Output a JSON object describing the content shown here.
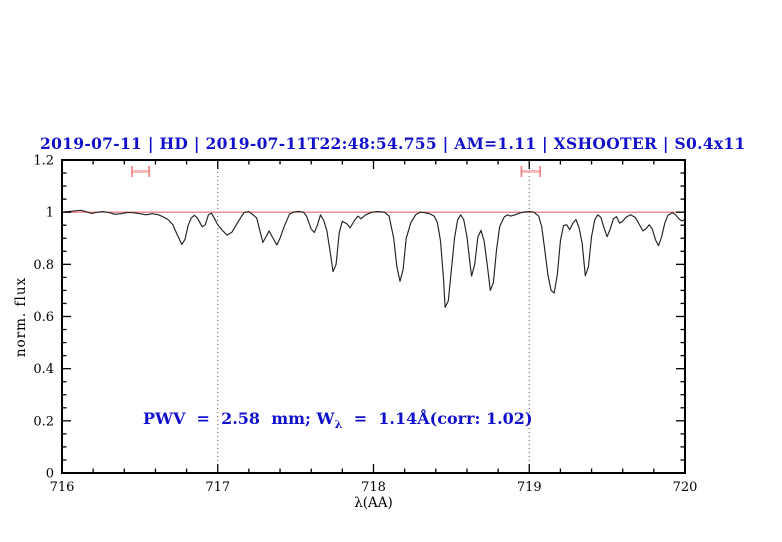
{
  "chart_data": {
    "type": "line",
    "title": "2019-07-11 | HD | 2019-07-11T22:48:54.755 | AM=1.11 | XSHOOTER | S0.4x11",
    "accent_color": "#1111cc",
    "xlabel": "λ(AA)",
    "ylabel": "norm. flux",
    "xlim": [
      716,
      720
    ],
    "ylim": [
      0,
      1.2
    ],
    "x_major_ticks": [
      716,
      717,
      718,
      719,
      720
    ],
    "x_tick_labels": [
      "716",
      "717",
      "718",
      "719",
      "720"
    ],
    "x_minor_step": 0.2,
    "y_major_ticks": [
      0,
      0.2,
      0.4,
      0.6,
      0.8,
      1.0,
      1.2
    ],
    "y_tick_labels": [
      "0",
      "0.2",
      "0.4",
      "0.6",
      "0.8",
      "1",
      "1.2"
    ],
    "y_minor_step": 0.05,
    "grid": "off",
    "legend": "none",
    "dotted_vlines": [
      717,
      719
    ],
    "dotted_vline_color": "#555555",
    "reference_hline": {
      "y": 1.0,
      "color": "#ee6b6b"
    },
    "range_markers": [
      {
        "x_min": 716.45,
        "x_max": 716.56,
        "y": 1.156
      },
      {
        "x_min": 718.95,
        "x_max": 719.07,
        "y": 1.156
      }
    ],
    "marker_bar_color": "#f7b0b0",
    "marker_cap_color": "#ec8282",
    "line_color": "#222222",
    "frame_color": "#000000",
    "annotation": {
      "pre": "PWV  =  2.58  mm; W",
      "sub": "λ",
      "post": "  =  1.14Å(corr: 1.02)",
      "x": 716.52,
      "y": 0.205
    },
    "series": [
      {
        "name": "normalized telluric spectrum",
        "points": [
          [
            716.0,
            1.0
          ],
          [
            716.04,
            1.002
          ],
          [
            716.08,
            1.005
          ],
          [
            716.12,
            1.007
          ],
          [
            716.15,
            1.003
          ],
          [
            716.19,
            0.995
          ],
          [
            716.22,
            0.999
          ],
          [
            716.26,
            1.002
          ],
          [
            716.3,
            0.999
          ],
          [
            716.34,
            0.992
          ],
          [
            716.38,
            0.994
          ],
          [
            716.42,
            0.999
          ],
          [
            716.46,
            0.998
          ],
          [
            716.5,
            0.994
          ],
          [
            716.54,
            0.99
          ],
          [
            716.58,
            0.994
          ],
          [
            716.62,
            0.99
          ],
          [
            716.65,
            0.982
          ],
          [
            716.68,
            0.972
          ],
          [
            716.71,
            0.953
          ],
          [
            716.74,
            0.913
          ],
          [
            716.77,
            0.876
          ],
          [
            716.79,
            0.896
          ],
          [
            716.81,
            0.95
          ],
          [
            716.83,
            0.978
          ],
          [
            716.85,
            0.988
          ],
          [
            716.87,
            0.977
          ],
          [
            716.9,
            0.944
          ],
          [
            716.92,
            0.952
          ],
          [
            716.94,
            0.99
          ],
          [
            716.96,
            0.996
          ],
          [
            716.98,
            0.975
          ],
          [
            717.0,
            0.951
          ],
          [
            717.03,
            0.93
          ],
          [
            717.06,
            0.912
          ],
          [
            717.09,
            0.923
          ],
          [
            717.12,
            0.952
          ],
          [
            717.15,
            0.982
          ],
          [
            717.17,
            0.999
          ],
          [
            717.2,
            1.002
          ],
          [
            717.23,
            0.988
          ],
          [
            717.25,
            0.978
          ],
          [
            717.27,
            0.93
          ],
          [
            717.29,
            0.884
          ],
          [
            717.31,
            0.905
          ],
          [
            717.33,
            0.928
          ],
          [
            717.35,
            0.905
          ],
          [
            717.38,
            0.874
          ],
          [
            717.4,
            0.9
          ],
          [
            717.43,
            0.95
          ],
          [
            717.46,
            0.992
          ],
          [
            717.49,
            1.001
          ],
          [
            717.52,
            1.003
          ],
          [
            717.55,
            1.0
          ],
          [
            717.57,
            0.985
          ],
          [
            717.6,
            0.935
          ],
          [
            717.62,
            0.922
          ],
          [
            717.64,
            0.95
          ],
          [
            717.66,
            0.99
          ],
          [
            717.68,
            0.968
          ],
          [
            717.7,
            0.93
          ],
          [
            717.72,
            0.855
          ],
          [
            717.74,
            0.772
          ],
          [
            717.76,
            0.8
          ],
          [
            717.78,
            0.92
          ],
          [
            717.8,
            0.965
          ],
          [
            717.83,
            0.955
          ],
          [
            717.85,
            0.94
          ],
          [
            717.88,
            0.97
          ],
          [
            717.9,
            0.985
          ],
          [
            717.92,
            0.975
          ],
          [
            717.95,
            0.99
          ],
          [
            717.99,
            1.0
          ],
          [
            718.03,
            1.002
          ],
          [
            718.07,
            1.0
          ],
          [
            718.1,
            0.985
          ],
          [
            718.13,
            0.9
          ],
          [
            718.15,
            0.79
          ],
          [
            718.17,
            0.735
          ],
          [
            718.19,
            0.78
          ],
          [
            718.21,
            0.9
          ],
          [
            718.24,
            0.96
          ],
          [
            718.27,
            0.99
          ],
          [
            718.3,
            1.0
          ],
          [
            718.33,
            0.998
          ],
          [
            718.36,
            0.994
          ],
          [
            718.39,
            0.985
          ],
          [
            718.41,
            0.96
          ],
          [
            718.43,
            0.89
          ],
          [
            718.45,
            0.74
          ],
          [
            718.46,
            0.635
          ],
          [
            718.48,
            0.66
          ],
          [
            718.5,
            0.78
          ],
          [
            718.52,
            0.9
          ],
          [
            718.54,
            0.97
          ],
          [
            718.56,
            0.99
          ],
          [
            718.58,
            0.97
          ],
          [
            718.6,
            0.905
          ],
          [
            718.62,
            0.8
          ],
          [
            718.63,
            0.755
          ],
          [
            718.65,
            0.8
          ],
          [
            718.67,
            0.905
          ],
          [
            718.69,
            0.93
          ],
          [
            718.71,
            0.89
          ],
          [
            718.73,
            0.8
          ],
          [
            718.75,
            0.7
          ],
          [
            718.77,
            0.73
          ],
          [
            718.79,
            0.855
          ],
          [
            718.81,
            0.945
          ],
          [
            718.84,
            0.982
          ],
          [
            718.86,
            0.99
          ],
          [
            718.88,
            0.985
          ],
          [
            718.91,
            0.99
          ],
          [
            718.94,
            0.997
          ],
          [
            718.97,
            1.001
          ],
          [
            719.0,
            1.002
          ],
          [
            719.03,
            1.0
          ],
          [
            719.06,
            0.985
          ],
          [
            719.08,
            0.945
          ],
          [
            719.1,
            0.855
          ],
          [
            719.12,
            0.76
          ],
          [
            719.14,
            0.7
          ],
          [
            719.16,
            0.69
          ],
          [
            719.18,
            0.76
          ],
          [
            719.2,
            0.89
          ],
          [
            719.22,
            0.948
          ],
          [
            719.24,
            0.952
          ],
          [
            719.26,
            0.933
          ],
          [
            719.28,
            0.958
          ],
          [
            719.3,
            0.972
          ],
          [
            719.32,
            0.94
          ],
          [
            719.34,
            0.88
          ],
          [
            719.36,
            0.756
          ],
          [
            719.38,
            0.79
          ],
          [
            719.4,
            0.905
          ],
          [
            719.42,
            0.97
          ],
          [
            719.44,
            0.99
          ],
          [
            719.46,
            0.98
          ],
          [
            719.48,
            0.94
          ],
          [
            719.5,
            0.906
          ],
          [
            719.52,
            0.935
          ],
          [
            719.54,
            0.975
          ],
          [
            719.56,
            0.983
          ],
          [
            719.58,
            0.958
          ],
          [
            719.6,
            0.965
          ],
          [
            719.62,
            0.98
          ],
          [
            719.65,
            0.99
          ],
          [
            719.68,
            0.98
          ],
          [
            719.7,
            0.96
          ],
          [
            719.73,
            0.928
          ],
          [
            719.75,
            0.937
          ],
          [
            719.77,
            0.952
          ],
          [
            719.79,
            0.935
          ],
          [
            719.81,
            0.895
          ],
          [
            719.83,
            0.872
          ],
          [
            719.85,
            0.905
          ],
          [
            719.87,
            0.958
          ],
          [
            719.89,
            0.988
          ],
          [
            719.92,
            0.998
          ],
          [
            719.94,
            0.99
          ],
          [
            719.96,
            0.975
          ],
          [
            719.98,
            0.966
          ],
          [
            720.0,
            0.972
          ]
        ]
      }
    ]
  }
}
